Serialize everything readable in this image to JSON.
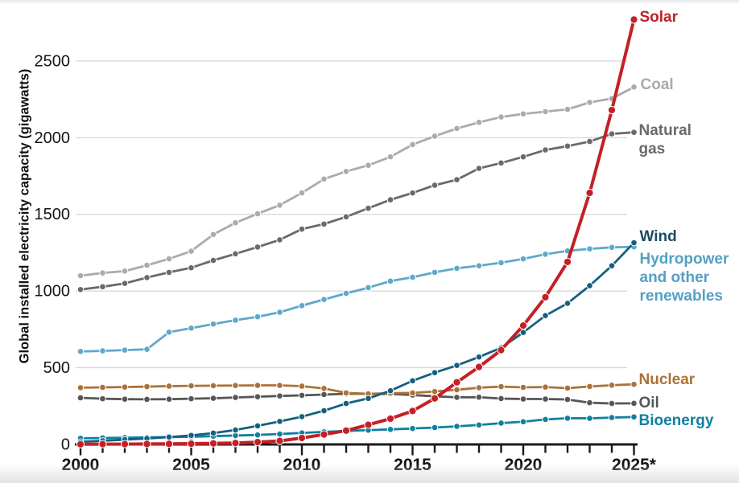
{
  "chart_data": {
    "type": "line",
    "title": "",
    "ylabel": "Global installed electricity capacity (gigawatts)",
    "xlabel": "",
    "x": [
      2000,
      2001,
      2002,
      2003,
      2004,
      2005,
      2006,
      2007,
      2008,
      2009,
      2010,
      2011,
      2012,
      2013,
      2014,
      2015,
      2016,
      2017,
      2018,
      2019,
      2020,
      2021,
      2022,
      2023,
      2024,
      2025
    ],
    "x_ticks": {
      "years": [
        2000,
        2005,
        2010,
        2015,
        2020,
        2025
      ],
      "labels": [
        "2000",
        "2005",
        "2010",
        "2015",
        "2020",
        "2025*"
      ]
    },
    "y_ticks": [
      0,
      500,
      1000,
      1500,
      2000,
      2500
    ],
    "ylim": [
      0,
      2900
    ],
    "xlim": [
      2000,
      2025
    ],
    "grid": "horizontal",
    "legend_position": "right-edge-annotations",
    "axis_color": "#1a1a1a",
    "gridline_color": "#cdcdcd",
    "series": [
      {
        "name": "coal",
        "label": "Coal",
        "label_lines": [
          "Coal"
        ],
        "color": "#ababab",
        "values": [
          1100,
          1118,
          1130,
          1168,
          1210,
          1260,
          1369,
          1445,
          1504,
          1560,
          1640,
          1730,
          1780,
          1820,
          1875,
          1955,
          2010,
          2060,
          2100,
          2135,
          2155,
          2170,
          2185,
          2230,
          2255,
          2330
        ]
      },
      {
        "name": "natural-gas",
        "label": "Natural gas",
        "label_lines": [
          "Natural",
          "gas"
        ],
        "color": "#6a6a6a",
        "values": [
          1010,
          1028,
          1050,
          1088,
          1122,
          1152,
          1200,
          1243,
          1287,
          1334,
          1404,
          1437,
          1484,
          1540,
          1595,
          1640,
          1690,
          1726,
          1800,
          1835,
          1875,
          1920,
          1945,
          1975,
          2025,
          2035
        ]
      },
      {
        "name": "hydropower",
        "label": "Hydropower and other renewables",
        "label_lines": [
          "Hydropower",
          "and other",
          "renewables"
        ],
        "color": "#5fa8ca",
        "label_color": "#55a0c4",
        "values": [
          606,
          610,
          615,
          620,
          732,
          758,
          785,
          810,
          832,
          862,
          905,
          945,
          985,
          1022,
          1065,
          1090,
          1122,
          1148,
          1165,
          1185,
          1210,
          1240,
          1262,
          1275,
          1285,
          1288
        ]
      },
      {
        "name": "oil",
        "label": "Oil",
        "label_lines": [
          "Oil"
        ],
        "color": "#565656",
        "values": [
          304,
          298,
          295,
          294,
          295,
          298,
          301,
          306,
          311,
          316,
          320,
          325,
          330,
          330,
          329,
          322,
          314,
          307,
          308,
          299,
          296,
          296,
          293,
          272,
          267,
          268
        ]
      },
      {
        "name": "nuclear",
        "label": "Nuclear",
        "label_lines": [
          "Nuclear"
        ],
        "color": "#ac7138",
        "values": [
          370,
          372,
          374,
          377,
          380,
          382,
          383,
          384,
          385,
          385,
          380,
          365,
          336,
          330,
          334,
          336,
          345,
          356,
          370,
          377,
          372,
          374,
          367,
          378,
          386,
          392
        ]
      },
      {
        "name": "bioenergy",
        "label": "Bioenergy",
        "label_lines": [
          "Bioenergy"
        ],
        "color": "#11809f",
        "values": [
          40,
          42,
          44,
          46,
          48,
          50,
          54,
          58,
          62,
          68,
          75,
          82,
          88,
          93,
          98,
          104,
          110,
          118,
          127,
          139,
          148,
          163,
          171,
          170,
          175,
          179
        ]
      },
      {
        "name": "wind",
        "label": "Wind",
        "label_lines": [
          "Wind"
        ],
        "color": "#14607f",
        "label_color": "#1b4a63",
        "values": [
          17,
          24,
          31,
          39,
          48,
          59,
          74,
          94,
          121,
          150,
          181,
          220,
          267,
          300,
          350,
          415,
          468,
          515,
          570,
          630,
          730,
          840,
          920,
          1035,
          1165,
          1315
        ]
      },
      {
        "name": "solar",
        "label": "Solar",
        "label_lines": [
          "Solar"
        ],
        "color": "#c32027",
        "values": [
          1,
          2,
          2,
          3,
          4,
          5,
          7,
          9,
          15,
          23,
          42,
          65,
          90,
          128,
          168,
          218,
          300,
          405,
          505,
          615,
          775,
          960,
          1190,
          1640,
          2180,
          2770
        ]
      }
    ]
  }
}
